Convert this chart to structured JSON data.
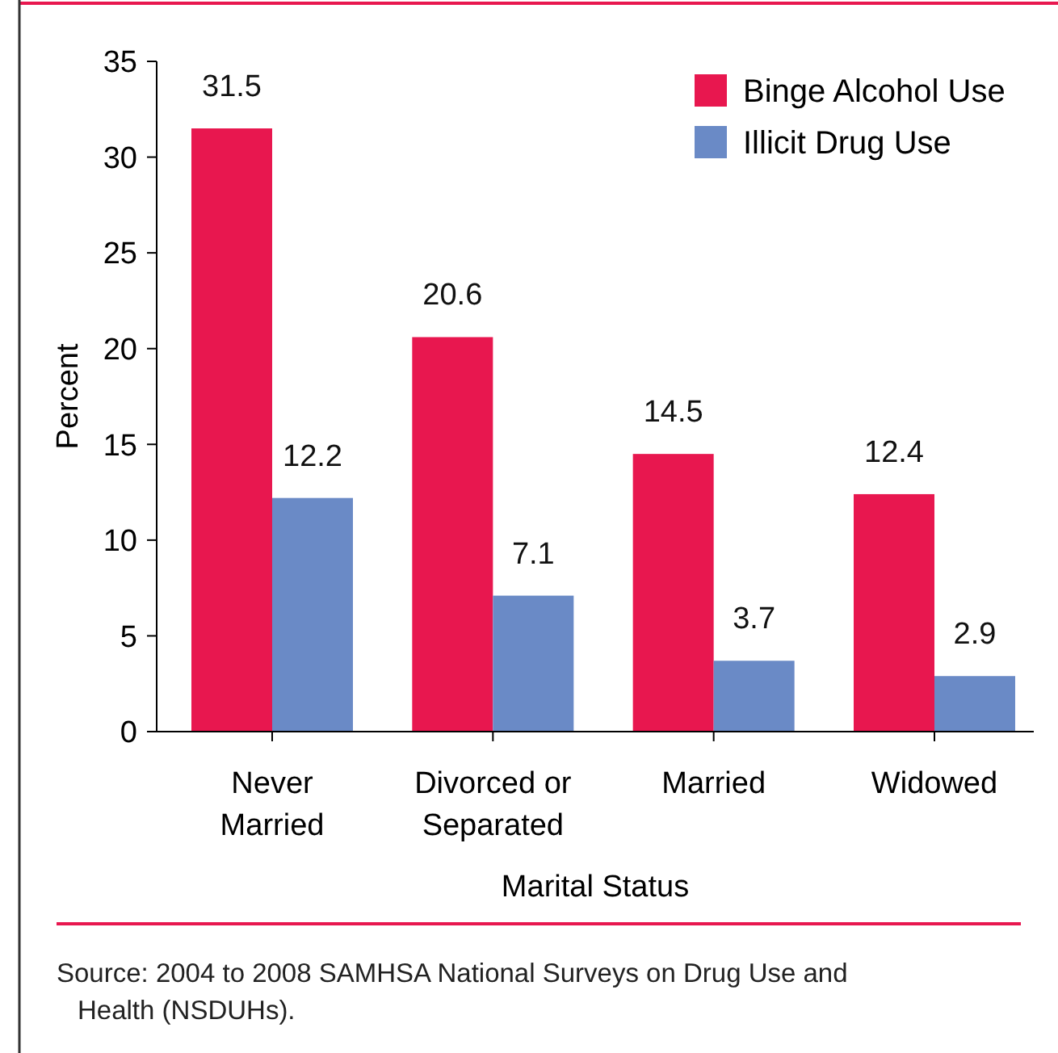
{
  "chart_data": {
    "type": "bar",
    "xlabel": "Marital Status",
    "ylabel": "Percent",
    "categories": [
      "Never\nMarried",
      "Divorced or\nSeparated",
      "Married",
      "Widowed"
    ],
    "series": [
      {
        "name": "Binge Alcohol Use",
        "color": "#e8174f",
        "values": [
          31.5,
          20.6,
          14.5,
          12.4
        ]
      },
      {
        "name": "Illicit Drug Use",
        "color": "#6a8ac6",
        "values": [
          12.2,
          7.1,
          3.7,
          2.9
        ]
      }
    ],
    "ylim": [
      0,
      35
    ],
    "yticks": [
      0,
      5,
      10,
      15,
      20,
      25,
      30,
      35
    ],
    "grid": false,
    "legend": "top right",
    "data_labels": true,
    "annotations": [
      "Source: 2004 to 2008 SAMHSA National Surveys on Drug Use and\nHealth (NSDUHs)."
    ]
  }
}
